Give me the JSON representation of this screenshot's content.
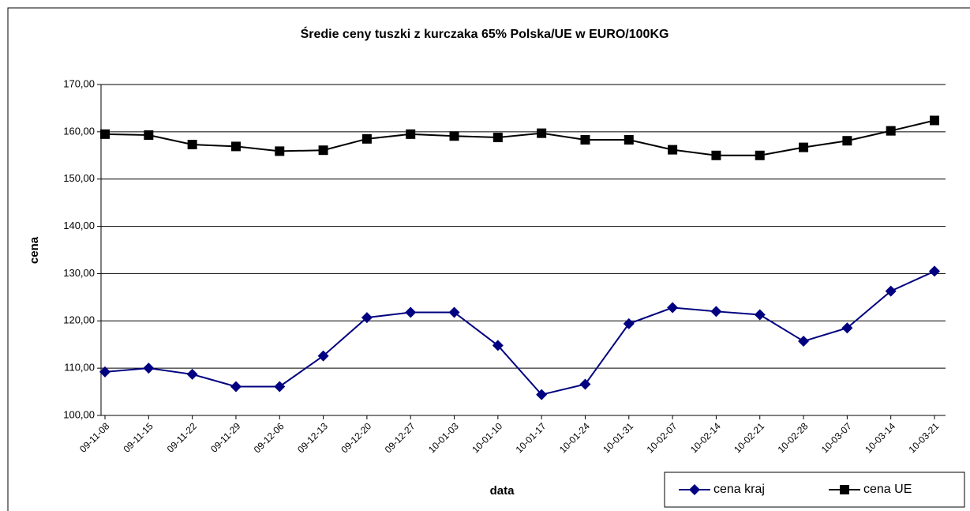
{
  "chart_data": {
    "type": "line",
    "title": "Średie ceny tuszki z kurczaka 65% Polska/UE w EURO/100KG",
    "x_label": "data",
    "y_label": "cena",
    "categories": [
      "09-11-08",
      "09-11-15",
      "09-11-22",
      "09-11-29",
      "09-12-06",
      "09-12-13",
      "09-12-20",
      "09-12-27",
      "10-01-03",
      "10-01-10",
      "10-01-17",
      "10-01-24",
      "10-01-31",
      "10-02-07",
      "10-02-14",
      "10-02-21",
      "10-02-28",
      "10-03-07",
      "10-03-14",
      "10-03-21"
    ],
    "series": [
      {
        "name": "cena kraj",
        "color": "#000080",
        "marker": "diamond",
        "values": [
          109.2,
          110.0,
          108.7,
          106.1,
          106.1,
          112.6,
          120.7,
          121.8,
          121.8,
          114.8,
          104.4,
          106.6,
          119.4,
          122.8,
          122.0,
          121.3,
          115.7,
          118.5,
          126.3,
          130.5
        ]
      },
      {
        "name": "cena UE",
        "color": "#000000",
        "marker": "square",
        "values": [
          159.5,
          159.3,
          157.3,
          156.9,
          155.9,
          156.1,
          158.5,
          159.5,
          159.1,
          158.8,
          159.7,
          158.3,
          158.3,
          156.2,
          155.0,
          155.0,
          156.7,
          158.1,
          160.2,
          162.4
        ]
      }
    ],
    "ylim": [
      100,
      170
    ],
    "yticks": [
      {
        "value": 100,
        "label": "100,00"
      },
      {
        "value": 110,
        "label": "110,00"
      },
      {
        "value": 120,
        "label": "120,00"
      },
      {
        "value": 130,
        "label": "130,00"
      },
      {
        "value": 140,
        "label": "140,00"
      },
      {
        "value": 150,
        "label": "150,00"
      },
      {
        "value": 160,
        "label": "160,00"
      },
      {
        "value": 170,
        "label": "170,00"
      }
    ],
    "grid": true,
    "legend": "bottom-right"
  }
}
